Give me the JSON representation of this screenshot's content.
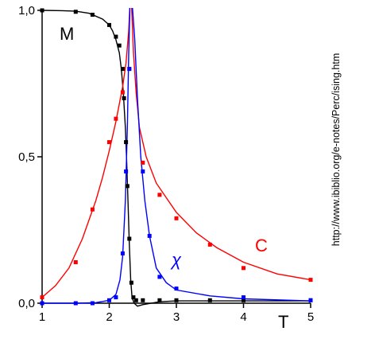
{
  "source_note": "http://www.ibiblio.org/e-notes/Perc/ising.htm",
  "chart_data": {
    "type": "line",
    "xlabel": "T",
    "ylabel": "",
    "xlim": [
      1,
      5
    ],
    "ylim": [
      0,
      1
    ],
    "x_ticks": [
      1,
      2,
      3,
      4,
      5
    ],
    "x_tick_labels": [
      "1",
      "2",
      "3",
      "4",
      "5"
    ],
    "y_ticks": [
      0,
      0.5,
      1
    ],
    "y_tick_labels": [
      "0,0",
      "0,5",
      "1,0"
    ],
    "grid": false,
    "legend": "inline labels",
    "series": [
      {
        "name": "M",
        "color": "#000000",
        "points": [
          [
            1.0,
            1.0
          ],
          [
            1.5,
            0.995
          ],
          [
            1.75,
            0.985
          ],
          [
            2.0,
            0.95
          ],
          [
            2.1,
            0.91
          ],
          [
            2.15,
            0.88
          ],
          [
            2.2,
            0.8
          ],
          [
            2.22,
            0.7
          ],
          [
            2.25,
            0.55
          ],
          [
            2.27,
            0.4
          ],
          [
            2.3,
            0.22
          ],
          [
            2.33,
            0.07
          ],
          [
            2.36,
            0.02
          ],
          [
            2.4,
            0.01
          ],
          [
            2.5,
            0.01
          ],
          [
            2.75,
            0.01
          ],
          [
            3.0,
            0.01
          ],
          [
            3.5,
            0.01
          ],
          [
            4.0,
            0.01
          ],
          [
            5.0,
            0.01
          ]
        ],
        "curve": [
          [
            1.0,
            1.0
          ],
          [
            1.3,
            0.999
          ],
          [
            1.5,
            0.997
          ],
          [
            1.7,
            0.99
          ],
          [
            1.9,
            0.97
          ],
          [
            2.0,
            0.95
          ],
          [
            2.05,
            0.93
          ],
          [
            2.1,
            0.9
          ],
          [
            2.15,
            0.855
          ],
          [
            2.18,
            0.8
          ],
          [
            2.21,
            0.72
          ],
          [
            2.24,
            0.6
          ],
          [
            2.26,
            0.48
          ],
          [
            2.28,
            0.34
          ],
          [
            2.3,
            0.2
          ],
          [
            2.32,
            0.08
          ],
          [
            2.34,
            0.02
          ],
          [
            2.37,
            0.0
          ],
          [
            2.42,
            -0.01
          ],
          [
            2.5,
            -0.005
          ],
          [
            2.75,
            0.005
          ],
          [
            3.0,
            0.008
          ],
          [
            4.0,
            0.008
          ],
          [
            5.0,
            0.008
          ]
        ]
      },
      {
        "name": "C",
        "color": "#ff0000",
        "points": [
          [
            1.0,
            0.02
          ],
          [
            1.5,
            0.14
          ],
          [
            1.75,
            0.32
          ],
          [
            2.0,
            0.55
          ],
          [
            2.1,
            0.63
          ],
          [
            2.2,
            0.72
          ],
          [
            2.3,
            0.8
          ],
          [
            2.5,
            0.48
          ],
          [
            2.75,
            0.37
          ],
          [
            3.0,
            0.29
          ],
          [
            3.5,
            0.2
          ],
          [
            4.0,
            0.12
          ],
          [
            5.0,
            0.08
          ]
        ],
        "curve": [
          [
            1.0,
            0.02
          ],
          [
            1.2,
            0.06
          ],
          [
            1.4,
            0.12
          ],
          [
            1.6,
            0.22
          ],
          [
            1.8,
            0.35
          ],
          [
            1.9,
            0.43
          ],
          [
            2.0,
            0.52
          ],
          [
            2.1,
            0.62
          ],
          [
            2.2,
            0.74
          ],
          [
            2.25,
            0.82
          ],
          [
            2.29,
            0.93
          ],
          [
            2.31,
            1.03
          ],
          [
            2.33,
            1.03
          ],
          [
            2.36,
            0.86
          ],
          [
            2.4,
            0.72
          ],
          [
            2.45,
            0.6
          ],
          [
            2.55,
            0.5
          ],
          [
            2.7,
            0.41
          ],
          [
            3.0,
            0.31
          ],
          [
            3.3,
            0.24
          ],
          [
            3.6,
            0.19
          ],
          [
            4.0,
            0.14
          ],
          [
            4.5,
            0.1
          ],
          [
            5.0,
            0.08
          ]
        ]
      },
      {
        "name": "χ",
        "color": "#0000ff",
        "points": [
          [
            1.0,
            0.0
          ],
          [
            1.5,
            0.0
          ],
          [
            1.75,
            0.0
          ],
          [
            2.0,
            0.01
          ],
          [
            2.1,
            0.02
          ],
          [
            2.2,
            0.17
          ],
          [
            2.25,
            0.45
          ],
          [
            2.3,
            0.8
          ],
          [
            2.5,
            0.45
          ],
          [
            2.6,
            0.23
          ],
          [
            2.75,
            0.09
          ],
          [
            3.0,
            0.05
          ],
          [
            4.0,
            0.02
          ],
          [
            5.0,
            0.01
          ]
        ],
        "curve": [
          [
            1.0,
            0.0
          ],
          [
            1.5,
            0.0
          ],
          [
            1.8,
            0.002
          ],
          [
            2.0,
            0.01
          ],
          [
            2.1,
            0.03
          ],
          [
            2.16,
            0.08
          ],
          [
            2.2,
            0.16
          ],
          [
            2.24,
            0.35
          ],
          [
            2.27,
            0.6
          ],
          [
            2.29,
            0.85
          ],
          [
            2.31,
            1.03
          ],
          [
            2.34,
            1.03
          ],
          [
            2.38,
            0.9
          ],
          [
            2.42,
            0.7
          ],
          [
            2.47,
            0.5
          ],
          [
            2.53,
            0.35
          ],
          [
            2.6,
            0.23
          ],
          [
            2.7,
            0.12
          ],
          [
            2.85,
            0.07
          ],
          [
            3.0,
            0.045
          ],
          [
            3.5,
            0.025
          ],
          [
            4.0,
            0.015
          ],
          [
            5.0,
            0.008
          ]
        ]
      }
    ]
  }
}
